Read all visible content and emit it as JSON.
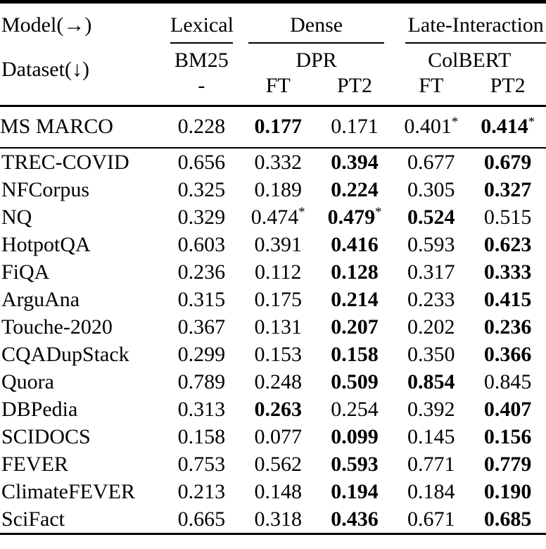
{
  "table": {
    "header": {
      "model_label": "Model(→)",
      "dataset_label": "Dataset(↓)",
      "groups": [
        {
          "label": "Lexical",
          "model": "BM25",
          "subcols": [
            "-"
          ]
        },
        {
          "label": "Dense",
          "model": "DPR",
          "subcols": [
            "FT",
            "PT2"
          ]
        },
        {
          "label": "Late-Interaction",
          "model": "ColBERT",
          "subcols": [
            "FT",
            "PT2"
          ]
        }
      ]
    },
    "columns": [
      "BM25 -",
      "DPR FT",
      "DPR PT2",
      "ColBERT FT",
      "ColBERT PT2"
    ],
    "rows": [
      {
        "dataset": "MS MARCO",
        "section_end": true,
        "values": [
          {
            "v": "0.228"
          },
          {
            "v": "0.177",
            "bold": true
          },
          {
            "v": "0.171"
          },
          {
            "v": "0.401",
            "sup": "*"
          },
          {
            "v": "0.414",
            "bold": true,
            "sup": "*"
          }
        ]
      },
      {
        "dataset": "TREC-COVID",
        "values": [
          {
            "v": "0.656"
          },
          {
            "v": "0.332"
          },
          {
            "v": "0.394",
            "bold": true
          },
          {
            "v": "0.677"
          },
          {
            "v": "0.679",
            "bold": true
          }
        ]
      },
      {
        "dataset": "NFCorpus",
        "values": [
          {
            "v": "0.325"
          },
          {
            "v": "0.189"
          },
          {
            "v": "0.224",
            "bold": true
          },
          {
            "v": "0.305"
          },
          {
            "v": "0.327",
            "bold": true
          }
        ]
      },
      {
        "dataset": "NQ",
        "values": [
          {
            "v": "0.329"
          },
          {
            "v": "0.474",
            "sup": "*"
          },
          {
            "v": "0.479",
            "bold": true,
            "sup": "*"
          },
          {
            "v": "0.524",
            "bold": true
          },
          {
            "v": "0.515"
          }
        ]
      },
      {
        "dataset": "HotpotQA",
        "values": [
          {
            "v": "0.603"
          },
          {
            "v": "0.391"
          },
          {
            "v": "0.416",
            "bold": true
          },
          {
            "v": "0.593"
          },
          {
            "v": "0.623",
            "bold": true
          }
        ]
      },
      {
        "dataset": "FiQA",
        "values": [
          {
            "v": "0.236"
          },
          {
            "v": "0.112"
          },
          {
            "v": "0.128",
            "bold": true
          },
          {
            "v": "0.317"
          },
          {
            "v": "0.333",
            "bold": true
          }
        ]
      },
      {
        "dataset": "ArguAna",
        "values": [
          {
            "v": "0.315"
          },
          {
            "v": "0.175"
          },
          {
            "v": "0.214",
            "bold": true
          },
          {
            "v": "0.233"
          },
          {
            "v": "0.415",
            "bold": true
          }
        ]
      },
      {
        "dataset": "Touche-2020",
        "values": [
          {
            "v": "0.367"
          },
          {
            "v": "0.131"
          },
          {
            "v": "0.207",
            "bold": true
          },
          {
            "v": "0.202"
          },
          {
            "v": "0.236",
            "bold": true
          }
        ]
      },
      {
        "dataset": "CQADupStack",
        "values": [
          {
            "v": "0.299"
          },
          {
            "v": "0.153"
          },
          {
            "v": "0.158",
            "bold": true
          },
          {
            "v": "0.350"
          },
          {
            "v": "0.366",
            "bold": true
          }
        ]
      },
      {
        "dataset": "Quora",
        "values": [
          {
            "v": "0.789"
          },
          {
            "v": "0.248"
          },
          {
            "v": "0.509",
            "bold": true
          },
          {
            "v": "0.854",
            "bold": true
          },
          {
            "v": "0.845"
          }
        ]
      },
      {
        "dataset": "DBPedia",
        "values": [
          {
            "v": "0.313"
          },
          {
            "v": "0.263",
            "bold": true
          },
          {
            "v": "0.254"
          },
          {
            "v": "0.392"
          },
          {
            "v": "0.407",
            "bold": true
          }
        ]
      },
      {
        "dataset": "SCIDOCS",
        "values": [
          {
            "v": "0.158"
          },
          {
            "v": "0.077"
          },
          {
            "v": "0.099",
            "bold": true
          },
          {
            "v": "0.145"
          },
          {
            "v": "0.156",
            "bold": true
          }
        ]
      },
      {
        "dataset": "FEVER",
        "values": [
          {
            "v": "0.753"
          },
          {
            "v": "0.562"
          },
          {
            "v": "0.593",
            "bold": true
          },
          {
            "v": "0.771"
          },
          {
            "v": "0.779",
            "bold": true
          }
        ]
      },
      {
        "dataset": "ClimateFEVER",
        "values": [
          {
            "v": "0.213"
          },
          {
            "v": "0.148"
          },
          {
            "v": "0.194",
            "bold": true
          },
          {
            "v": "0.184"
          },
          {
            "v": "0.190",
            "bold": true
          }
        ]
      },
      {
        "dataset": "SciFact",
        "values": [
          {
            "v": "0.665"
          },
          {
            "v": "0.318"
          },
          {
            "v": "0.436",
            "bold": true
          },
          {
            "v": "0.671"
          },
          {
            "v": "0.685",
            "bold": true
          }
        ]
      }
    ]
  }
}
